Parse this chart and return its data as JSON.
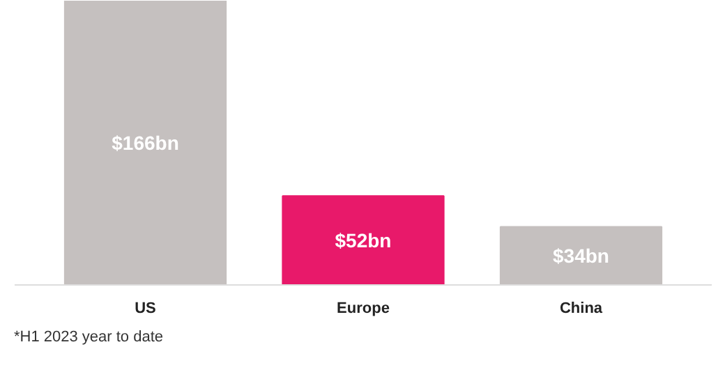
{
  "chart_data": {
    "type": "bar",
    "categories": [
      "US",
      "Europe",
      "China"
    ],
    "values": [
      166,
      52,
      34
    ],
    "colors": [
      "#c5c0bf",
      "#e8196a",
      "#c5c0bf"
    ],
    "value_labels": [
      "$166bn",
      "$52bn",
      "$34bn"
    ],
    "grid": false,
    "annotations": [
      "*H1 2023 year to date"
    ]
  }
}
